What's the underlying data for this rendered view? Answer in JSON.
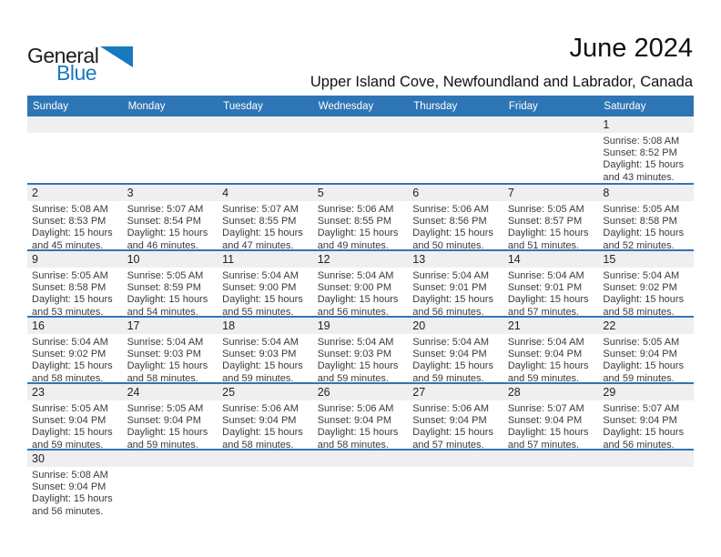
{
  "logo": {
    "general": "General",
    "blue": "Blue"
  },
  "header": {
    "title": "June 2024",
    "subtitle": "Upper Island Cove, Newfoundland and Labrador, Canada"
  },
  "colors": {
    "header_blue": "#2e75b5",
    "week_divider_blue": "#2e75b5",
    "number_band_gray": "#efefef",
    "logo_blue": "#1879bf"
  },
  "weekdays": [
    "Sunday",
    "Monday",
    "Tuesday",
    "Wednesday",
    "Thursday",
    "Friday",
    "Saturday"
  ],
  "weeks": [
    [
      null,
      null,
      null,
      null,
      null,
      null,
      {
        "day": "1",
        "lines": [
          "Sunrise: 5:08 AM",
          "Sunset: 8:52 PM",
          "Daylight: 15 hours",
          "and 43 minutes."
        ]
      }
    ],
    [
      {
        "day": "2",
        "lines": [
          "Sunrise: 5:08 AM",
          "Sunset: 8:53 PM",
          "Daylight: 15 hours",
          "and 45 minutes."
        ]
      },
      {
        "day": "3",
        "lines": [
          "Sunrise: 5:07 AM",
          "Sunset: 8:54 PM",
          "Daylight: 15 hours",
          "and 46 minutes."
        ]
      },
      {
        "day": "4",
        "lines": [
          "Sunrise: 5:07 AM",
          "Sunset: 8:55 PM",
          "Daylight: 15 hours",
          "and 47 minutes."
        ]
      },
      {
        "day": "5",
        "lines": [
          "Sunrise: 5:06 AM",
          "Sunset: 8:55 PM",
          "Daylight: 15 hours",
          "and 49 minutes."
        ]
      },
      {
        "day": "6",
        "lines": [
          "Sunrise: 5:06 AM",
          "Sunset: 8:56 PM",
          "Daylight: 15 hours",
          "and 50 minutes."
        ]
      },
      {
        "day": "7",
        "lines": [
          "Sunrise: 5:05 AM",
          "Sunset: 8:57 PM",
          "Daylight: 15 hours",
          "and 51 minutes."
        ]
      },
      {
        "day": "8",
        "lines": [
          "Sunrise: 5:05 AM",
          "Sunset: 8:58 PM",
          "Daylight: 15 hours",
          "and 52 minutes."
        ]
      }
    ],
    [
      {
        "day": "9",
        "lines": [
          "Sunrise: 5:05 AM",
          "Sunset: 8:58 PM",
          "Daylight: 15 hours",
          "and 53 minutes."
        ]
      },
      {
        "day": "10",
        "lines": [
          "Sunrise: 5:05 AM",
          "Sunset: 8:59 PM",
          "Daylight: 15 hours",
          "and 54 minutes."
        ]
      },
      {
        "day": "11",
        "lines": [
          "Sunrise: 5:04 AM",
          "Sunset: 9:00 PM",
          "Daylight: 15 hours",
          "and 55 minutes."
        ]
      },
      {
        "day": "12",
        "lines": [
          "Sunrise: 5:04 AM",
          "Sunset: 9:00 PM",
          "Daylight: 15 hours",
          "and 56 minutes."
        ]
      },
      {
        "day": "13",
        "lines": [
          "Sunrise: 5:04 AM",
          "Sunset: 9:01 PM",
          "Daylight: 15 hours",
          "and 56 minutes."
        ]
      },
      {
        "day": "14",
        "lines": [
          "Sunrise: 5:04 AM",
          "Sunset: 9:01 PM",
          "Daylight: 15 hours",
          "and 57 minutes."
        ]
      },
      {
        "day": "15",
        "lines": [
          "Sunrise: 5:04 AM",
          "Sunset: 9:02 PM",
          "Daylight: 15 hours",
          "and 58 minutes."
        ]
      }
    ],
    [
      {
        "day": "16",
        "lines": [
          "Sunrise: 5:04 AM",
          "Sunset: 9:02 PM",
          "Daylight: 15 hours",
          "and 58 minutes."
        ]
      },
      {
        "day": "17",
        "lines": [
          "Sunrise: 5:04 AM",
          "Sunset: 9:03 PM",
          "Daylight: 15 hours",
          "and 58 minutes."
        ]
      },
      {
        "day": "18",
        "lines": [
          "Sunrise: 5:04 AM",
          "Sunset: 9:03 PM",
          "Daylight: 15 hours",
          "and 59 minutes."
        ]
      },
      {
        "day": "19",
        "lines": [
          "Sunrise: 5:04 AM",
          "Sunset: 9:03 PM",
          "Daylight: 15 hours",
          "and 59 minutes."
        ]
      },
      {
        "day": "20",
        "lines": [
          "Sunrise: 5:04 AM",
          "Sunset: 9:04 PM",
          "Daylight: 15 hours",
          "and 59 minutes."
        ]
      },
      {
        "day": "21",
        "lines": [
          "Sunrise: 5:04 AM",
          "Sunset: 9:04 PM",
          "Daylight: 15 hours",
          "and 59 minutes."
        ]
      },
      {
        "day": "22",
        "lines": [
          "Sunrise: 5:05 AM",
          "Sunset: 9:04 PM",
          "Daylight: 15 hours",
          "and 59 minutes."
        ]
      }
    ],
    [
      {
        "day": "23",
        "lines": [
          "Sunrise: 5:05 AM",
          "Sunset: 9:04 PM",
          "Daylight: 15 hours",
          "and 59 minutes."
        ]
      },
      {
        "day": "24",
        "lines": [
          "Sunrise: 5:05 AM",
          "Sunset: 9:04 PM",
          "Daylight: 15 hours",
          "and 59 minutes."
        ]
      },
      {
        "day": "25",
        "lines": [
          "Sunrise: 5:06 AM",
          "Sunset: 9:04 PM",
          "Daylight: 15 hours",
          "and 58 minutes."
        ]
      },
      {
        "day": "26",
        "lines": [
          "Sunrise: 5:06 AM",
          "Sunset: 9:04 PM",
          "Daylight: 15 hours",
          "and 58 minutes."
        ]
      },
      {
        "day": "27",
        "lines": [
          "Sunrise: 5:06 AM",
          "Sunset: 9:04 PM",
          "Daylight: 15 hours",
          "and 57 minutes."
        ]
      },
      {
        "day": "28",
        "lines": [
          "Sunrise: 5:07 AM",
          "Sunset: 9:04 PM",
          "Daylight: 15 hours",
          "and 57 minutes."
        ]
      },
      {
        "day": "29",
        "lines": [
          "Sunrise: 5:07 AM",
          "Sunset: 9:04 PM",
          "Daylight: 15 hours",
          "and 56 minutes."
        ]
      }
    ],
    [
      {
        "day": "30",
        "lines": [
          "Sunrise: 5:08 AM",
          "Sunset: 9:04 PM",
          "Daylight: 15 hours",
          "and 56 minutes."
        ]
      },
      null,
      null,
      null,
      null,
      null,
      null
    ]
  ]
}
